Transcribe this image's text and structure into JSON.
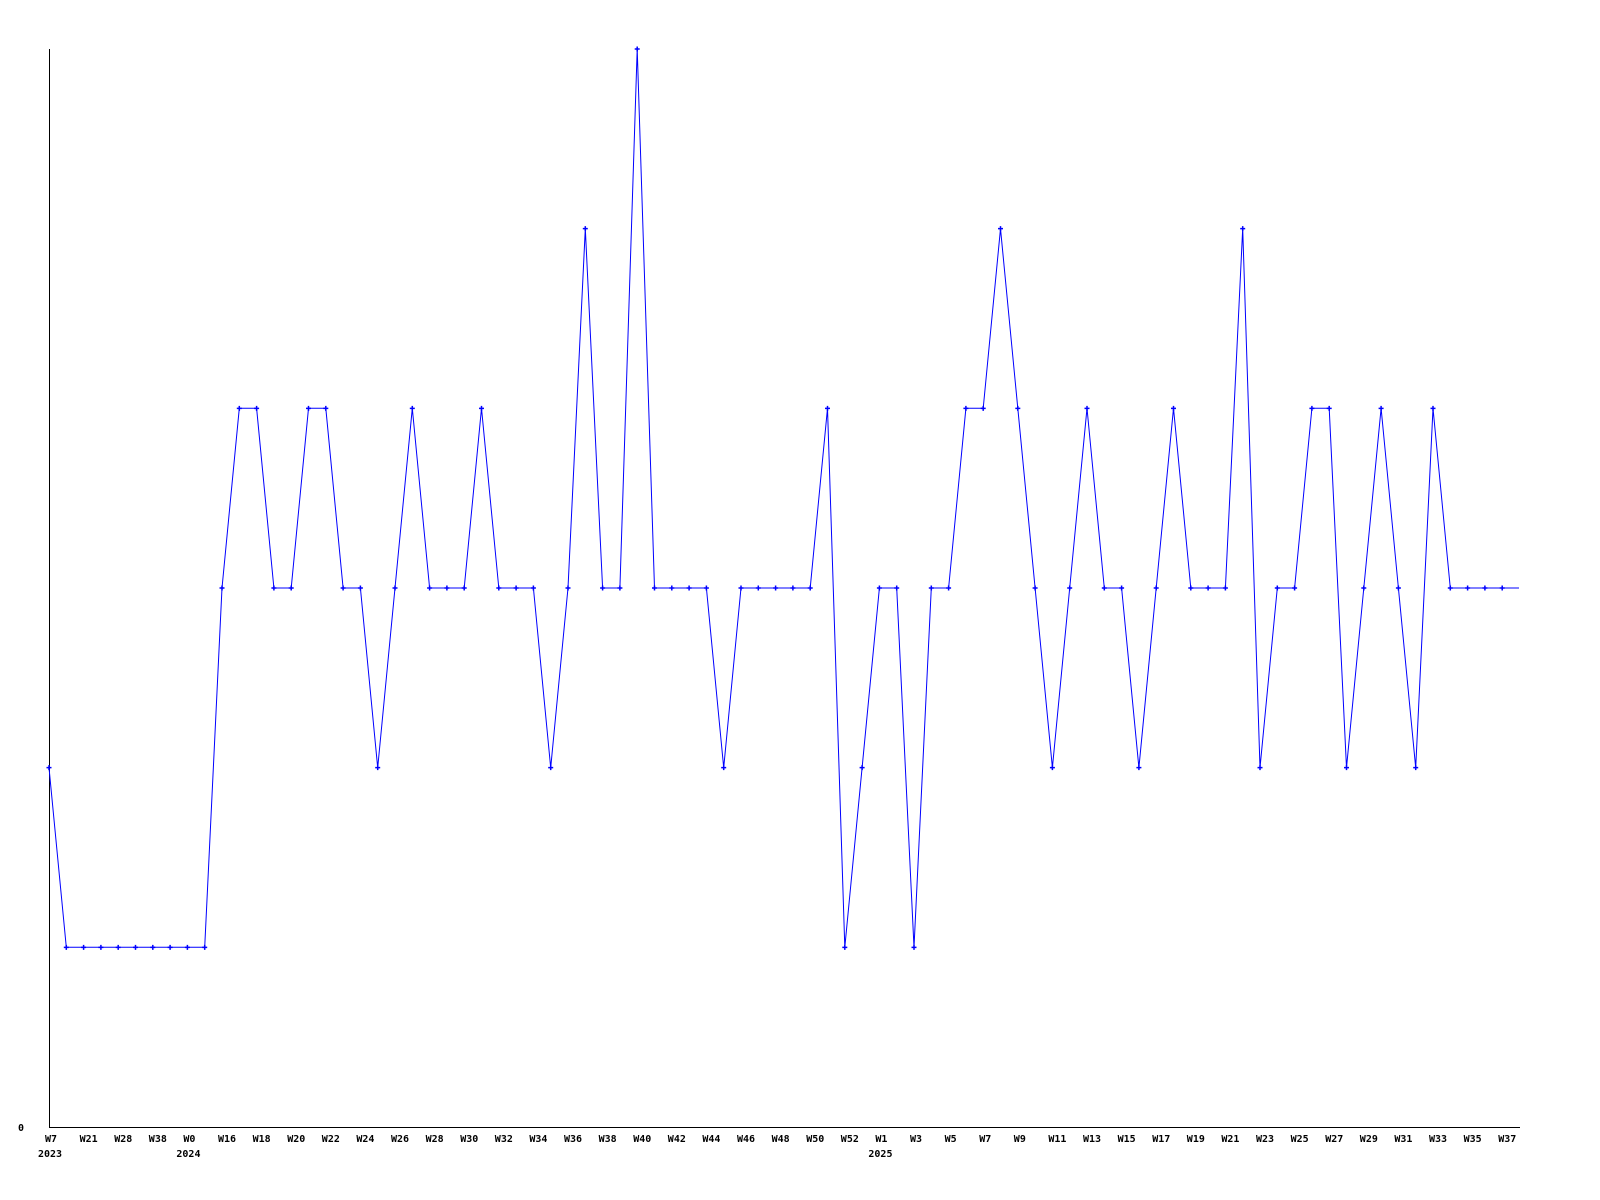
{
  "chart_data": {
    "type": "line",
    "title": "",
    "xlabel": "",
    "ylabel": "",
    "ylim": [
      0,
      6
    ],
    "y_tick_labels": [
      "0"
    ],
    "grid": false,
    "legend": "none",
    "series_color": "#0000ff",
    "axis_color": "#000000",
    "x_labels": [
      "W7",
      "",
      "W21",
      "",
      "W28",
      "",
      "W38",
      "",
      "W0",
      "",
      "W16",
      "",
      "W18",
      "",
      "W20",
      "",
      "W22",
      "",
      "W24",
      "",
      "W26",
      "",
      "W28",
      "",
      "W30",
      "",
      "W32",
      "",
      "W34",
      "",
      "W36",
      "",
      "W38",
      "",
      "W40",
      "",
      "W42",
      "",
      "W44",
      "",
      "W46",
      "",
      "W48",
      "",
      "W50",
      "",
      "W52",
      "",
      "W1",
      "",
      "W3",
      "",
      "W5",
      "",
      "W7",
      "",
      "W9",
      "",
      "W11",
      "",
      "W13",
      "",
      "W15",
      "",
      "W17",
      "",
      "W19",
      "",
      "W21",
      "",
      "W23",
      "",
      "W25",
      "",
      "W27",
      "",
      "W29",
      "",
      "W31",
      "",
      "W33",
      "",
      "W35",
      "",
      "W37"
    ],
    "year_labels": [
      {
        "index": 0,
        "label": "2023"
      },
      {
        "index": 8,
        "label": "2024"
      },
      {
        "index": 48,
        "label": "2025"
      }
    ],
    "series": [
      {
        "values": [
          2,
          1,
          1,
          1,
          1,
          1,
          1,
          1,
          1,
          1,
          3,
          4,
          4,
          3,
          3,
          4,
          4,
          3,
          3,
          2,
          3,
          4,
          3,
          3,
          3,
          4,
          3,
          3,
          3,
          2,
          3,
          5,
          3,
          3,
          6,
          3,
          3,
          3,
          3,
          2,
          3,
          3,
          3,
          3,
          3,
          4,
          1,
          2,
          3,
          3,
          1,
          3,
          3,
          4,
          4,
          5,
          4,
          3,
          2,
          3,
          4,
          3,
          3,
          2,
          3,
          4,
          3,
          3,
          3,
          5,
          2,
          3,
          3,
          4,
          4,
          2,
          3,
          4,
          3,
          2,
          4,
          3,
          3,
          3,
          3
        ]
      }
    ]
  }
}
